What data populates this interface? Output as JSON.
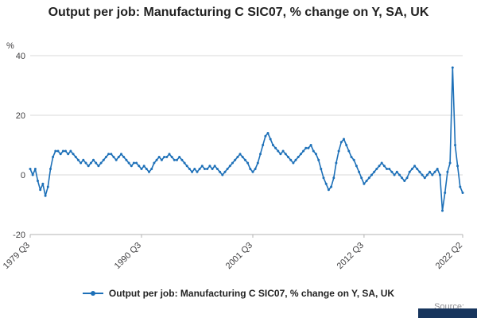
{
  "page": {
    "title": "Output per job: Manufacturing C SIC07, % change on Y, SA, UK"
  },
  "legend": {
    "label": "Output per job: Manufacturing C SIC07, % change on Y, SA, UK"
  },
  "source": {
    "label": "Source:"
  },
  "colors": {
    "line": "#1d70b8",
    "grid": "#d9d9d9",
    "axis": "#b3b3b3",
    "tick_text": "#414042",
    "title_text": "#222222",
    "source_text": "#8e8e93",
    "logo": "#17355d"
  },
  "chart_data": {
    "type": "line",
    "title": "Output per job: Manufacturing C SIC07, % change on Y, SA, UK",
    "xlabel": "",
    "ylabel": "%",
    "ylim": [
      -20,
      40
    ],
    "y_ticks": [
      -20,
      0,
      20,
      40
    ],
    "grid": "horizontal",
    "legend_position": "bottom",
    "frequency": "quarterly",
    "x_start": "1979 Q3",
    "x_end": "2022 Q2",
    "x_tick_labels": [
      "1979 Q3",
      "1990 Q3",
      "2001 Q3",
      "2012 Q3",
      "2022 Q2"
    ],
    "x_tick_indices": [
      0,
      44,
      88,
      132,
      171
    ],
    "series": [
      {
        "name": "Output per job: Manufacturing C SIC07, % change on Y, SA, UK",
        "values": [
          2,
          0,
          2,
          -2,
          -5,
          -3,
          -7,
          -4,
          2,
          6,
          8,
          8,
          7,
          8,
          8,
          7,
          8,
          7,
          6,
          5,
          4,
          5,
          4,
          3,
          4,
          5,
          4,
          3,
          4,
          5,
          6,
          7,
          7,
          6,
          5,
          6,
          7,
          6,
          5,
          4,
          3,
          4,
          4,
          3,
          2,
          3,
          2,
          1,
          2,
          4,
          5,
          6,
          5,
          6,
          6,
          7,
          6,
          5,
          5,
          6,
          5,
          4,
          3,
          2,
          1,
          2,
          1,
          2,
          3,
          2,
          2,
          3,
          2,
          3,
          2,
          1,
          0,
          1,
          2,
          3,
          4,
          5,
          6,
          7,
          6,
          5,
          4,
          2,
          1,
          2,
          4,
          7,
          10,
          13,
          14,
          12,
          10,
          9,
          8,
          7,
          8,
          7,
          6,
          5,
          4,
          5,
          6,
          7,
          8,
          9,
          9,
          10,
          8,
          7,
          5,
          2,
          -1,
          -3,
          -5,
          -4,
          -1,
          4,
          8,
          11,
          12,
          10,
          8,
          6,
          5,
          3,
          1,
          -1,
          -3,
          -2,
          -1,
          0,
          1,
          2,
          3,
          4,
          3,
          2,
          2,
          1,
          0,
          1,
          0,
          -1,
          -2,
          -1,
          1,
          2,
          3,
          2,
          1,
          0,
          -1,
          0,
          1,
          0,
          1,
          2,
          0,
          -12,
          -6,
          1,
          4,
          36,
          10,
          3,
          -4,
          -6
        ]
      }
    ]
  }
}
